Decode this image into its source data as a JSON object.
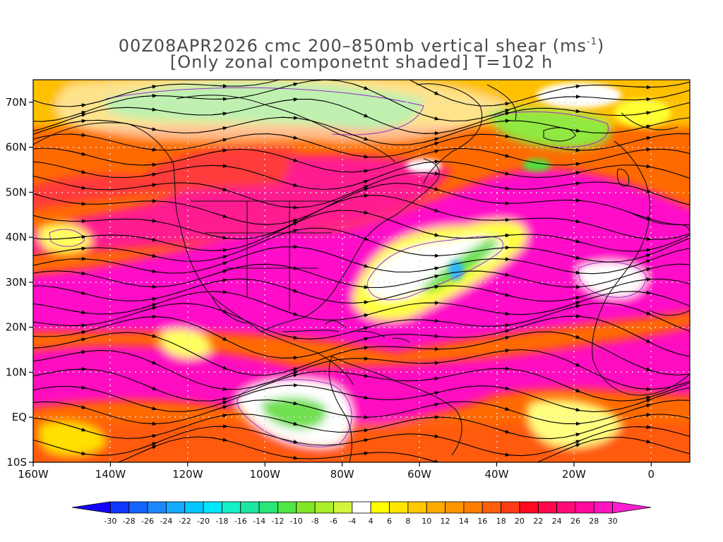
{
  "title": {
    "line1_prefix": "00Z08APR2026 cmc 200–850mb vertical shear (ms",
    "line1_sup": "-1",
    "line1_suffix": ")",
    "line2": "[Only zonal componetnt shaded] T=102 h"
  },
  "map": {
    "lon_range": [
      -160,
      10
    ],
    "lat_range": [
      -10,
      75
    ],
    "lat_ticks": [
      {
        "value": 70,
        "label": "70N"
      },
      {
        "value": 60,
        "label": "60N"
      },
      {
        "value": 50,
        "label": "50N"
      },
      {
        "value": 40,
        "label": "40N"
      },
      {
        "value": 30,
        "label": "30N"
      },
      {
        "value": 20,
        "label": "20N"
      },
      {
        "value": 10,
        "label": "10N"
      },
      {
        "value": 0,
        "label": "EQ"
      },
      {
        "value": -10,
        "label": "10S"
      }
    ],
    "lon_ticks": [
      {
        "value": -160,
        "label": "160W"
      },
      {
        "value": -140,
        "label": "140W"
      },
      {
        "value": -120,
        "label": "120W"
      },
      {
        "value": -100,
        "label": "100W"
      },
      {
        "value": -80,
        "label": "80W"
      },
      {
        "value": -60,
        "label": "60W"
      },
      {
        "value": -40,
        "label": "40W"
      },
      {
        "value": -20,
        "label": "20W"
      },
      {
        "value": 0,
        "label": "0"
      }
    ]
  },
  "colorbar": {
    "levels": [
      "-30",
      "-28",
      "-26",
      "-24",
      "-22",
      "-20",
      "-18",
      "-16",
      "-14",
      "-12",
      "-10",
      "-8",
      "-6",
      "-4",
      "4",
      "6",
      "8",
      "10",
      "12",
      "14",
      "16",
      "18",
      "20",
      "22",
      "24",
      "26",
      "28",
      "30"
    ],
    "colors": [
      "#1400ff",
      "#0f37ff",
      "#1464ff",
      "#1e87ff",
      "#14aaff",
      "#00c8ff",
      "#00e6ff",
      "#14f0c8",
      "#1ee6a0",
      "#28e678",
      "#50e646",
      "#82e628",
      "#aaf028",
      "#d2f53c",
      "#ffffff",
      "#ffff00",
      "#ffe600",
      "#ffc800",
      "#ffaa00",
      "#ff9600",
      "#ff7d00",
      "#ff5f0a",
      "#ff3c14",
      "#ff0a1e",
      "#ff0a4b",
      "#ff0a78",
      "#ff0a9b",
      "#ff14be",
      "#ff1ed2"
    ]
  }
}
